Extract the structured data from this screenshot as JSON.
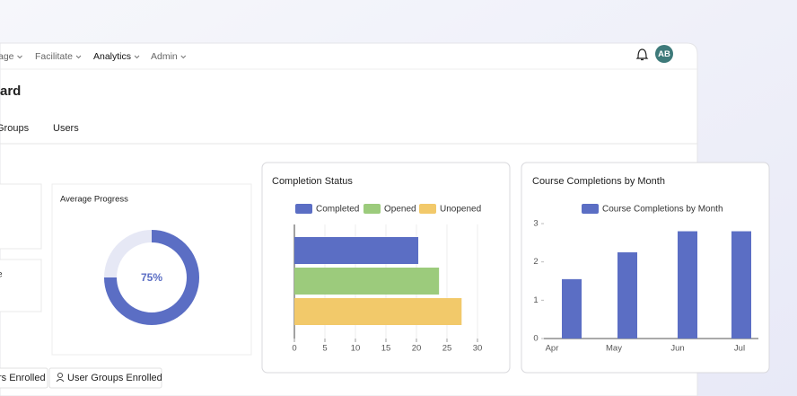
{
  "nav": {
    "items": [
      "age",
      "Facilitate",
      "Analytics",
      "Admin"
    ],
    "avatar": "AB"
  },
  "header": {
    "title": "ard"
  },
  "tabs": [
    "Groups",
    "Users"
  ],
  "left_cards": [
    "e"
  ],
  "progress": {
    "title": "Average Progress",
    "value": 75,
    "value_label": "75%"
  },
  "buttons": [
    "rs Enrolled",
    "User Groups Enrolled"
  ],
  "chart_data": [
    {
      "type": "hbar",
      "title": "Completion Status",
      "categories": [
        "Completed",
        "Opened",
        "Unopened"
      ],
      "values": [
        20.3,
        23.7,
        27.4
      ],
      "colors": [
        "#5b6ec4",
        "#9ccb7c",
        "#f2c96a"
      ],
      "xlim": [
        0,
        30
      ],
      "xticks": [
        0,
        5,
        10,
        15,
        20,
        25,
        30
      ],
      "grid": true,
      "legend": "top"
    },
    {
      "type": "bar",
      "title": "Course Completions by Month",
      "categories": [
        "Apr",
        "May",
        "Jun",
        "Jul"
      ],
      "series": [
        {
          "name": "Course Completions by Month",
          "color": "#5b6ec4",
          "values": [
            1.55,
            2.25,
            2.8,
            2.8
          ]
        }
      ],
      "ylim": [
        0,
        3
      ],
      "yticks": [
        0,
        1,
        2,
        3
      ],
      "grid": false,
      "legend": "top"
    }
  ]
}
